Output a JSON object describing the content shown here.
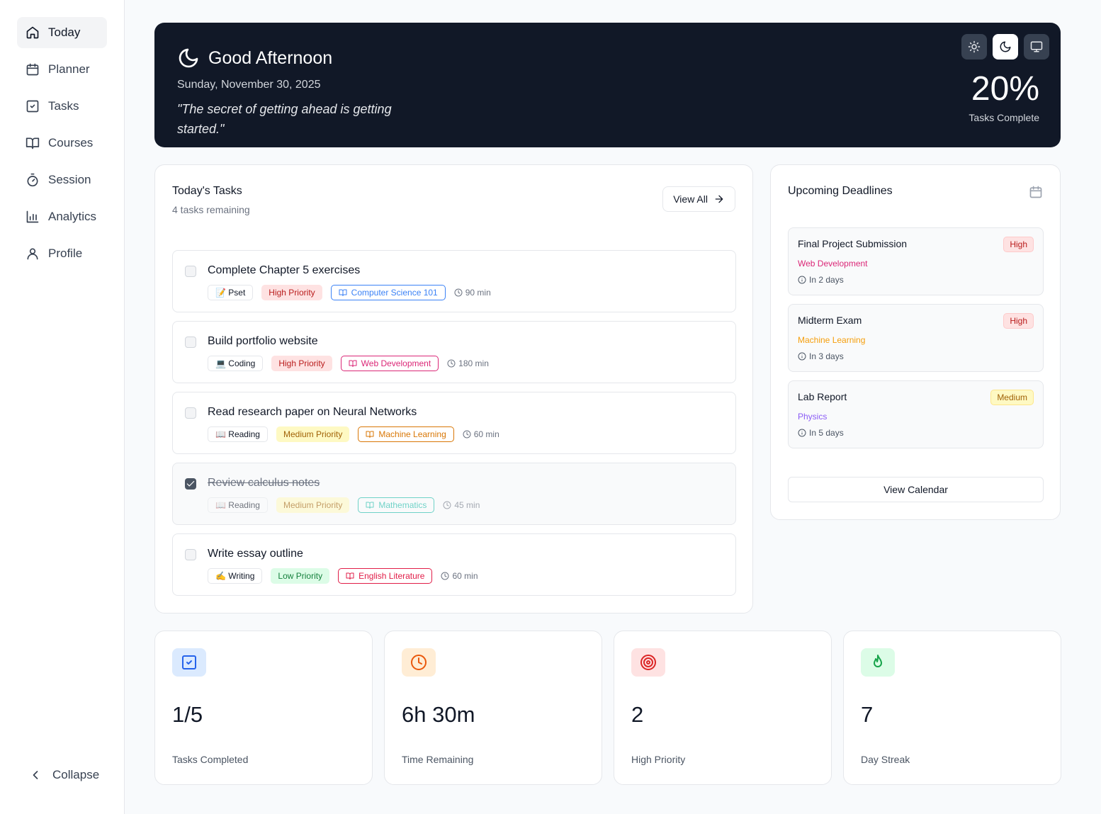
{
  "nav": {
    "items": [
      "Today",
      "Planner",
      "Tasks",
      "Courses",
      "Session",
      "Analytics",
      "Profile"
    ],
    "active": 0,
    "collapse": "Collapse"
  },
  "header": {
    "greeting": "Good Afternoon",
    "date": "Sunday, November 30, 2025",
    "quote": "\"The secret of getting ahead is getting started.\"",
    "progress": "20%",
    "progress_label": "Tasks Complete",
    "theme_active": 1
  },
  "tasks": {
    "title": "Today's Tasks",
    "subtitle": "4 tasks remaining",
    "view_all": "View All",
    "items": [
      {
        "title": "Complete Chapter 5 exercises",
        "type": "📝 Pset",
        "priority": "High Priority",
        "course": "Computer Science 101",
        "course_color": "#3b82f6",
        "duration": "90 min",
        "done": false
      },
      {
        "title": "Build portfolio website",
        "type": "💻 Coding",
        "priority": "High Priority",
        "course": "Web Development",
        "course_color": "#db2777",
        "duration": "180 min",
        "done": false
      },
      {
        "title": "Read research paper on Neural Networks",
        "type": "📖 Reading",
        "priority": "Medium Priority",
        "course": "Machine Learning",
        "course_color": "#d97706",
        "duration": "60 min",
        "done": false
      },
      {
        "title": "Review calculus notes",
        "type": "📖 Reading",
        "priority": "Medium Priority",
        "course": "Mathematics",
        "course_color": "#14b8a6",
        "duration": "45 min",
        "done": true
      },
      {
        "title": "Write essay outline",
        "type": "✍️ Writing",
        "priority": "Low Priority",
        "course": "English Literature",
        "course_color": "#e11d48",
        "duration": "60 min",
        "done": false
      }
    ]
  },
  "deadlines": {
    "title": "Upcoming Deadlines",
    "button": "View Calendar",
    "items": [
      {
        "title": "Final Project Submission",
        "priority": "High",
        "course": "Web Development",
        "course_color": "#db2777",
        "due": "In 2 days"
      },
      {
        "title": "Midterm Exam",
        "priority": "High",
        "course": "Machine Learning",
        "course_color": "#f59e0b",
        "due": "In 3 days"
      },
      {
        "title": "Lab Report",
        "priority": "Medium",
        "course": "Physics",
        "course_color": "#8b5cf6",
        "due": "In 5 days"
      }
    ]
  },
  "stats": [
    {
      "value": "1/5",
      "label": "Tasks Completed"
    },
    {
      "value": "6h 30m",
      "label": "Time Remaining"
    },
    {
      "value": "2",
      "label": "High Priority"
    },
    {
      "value": "7",
      "label": "Day Streak"
    }
  ]
}
